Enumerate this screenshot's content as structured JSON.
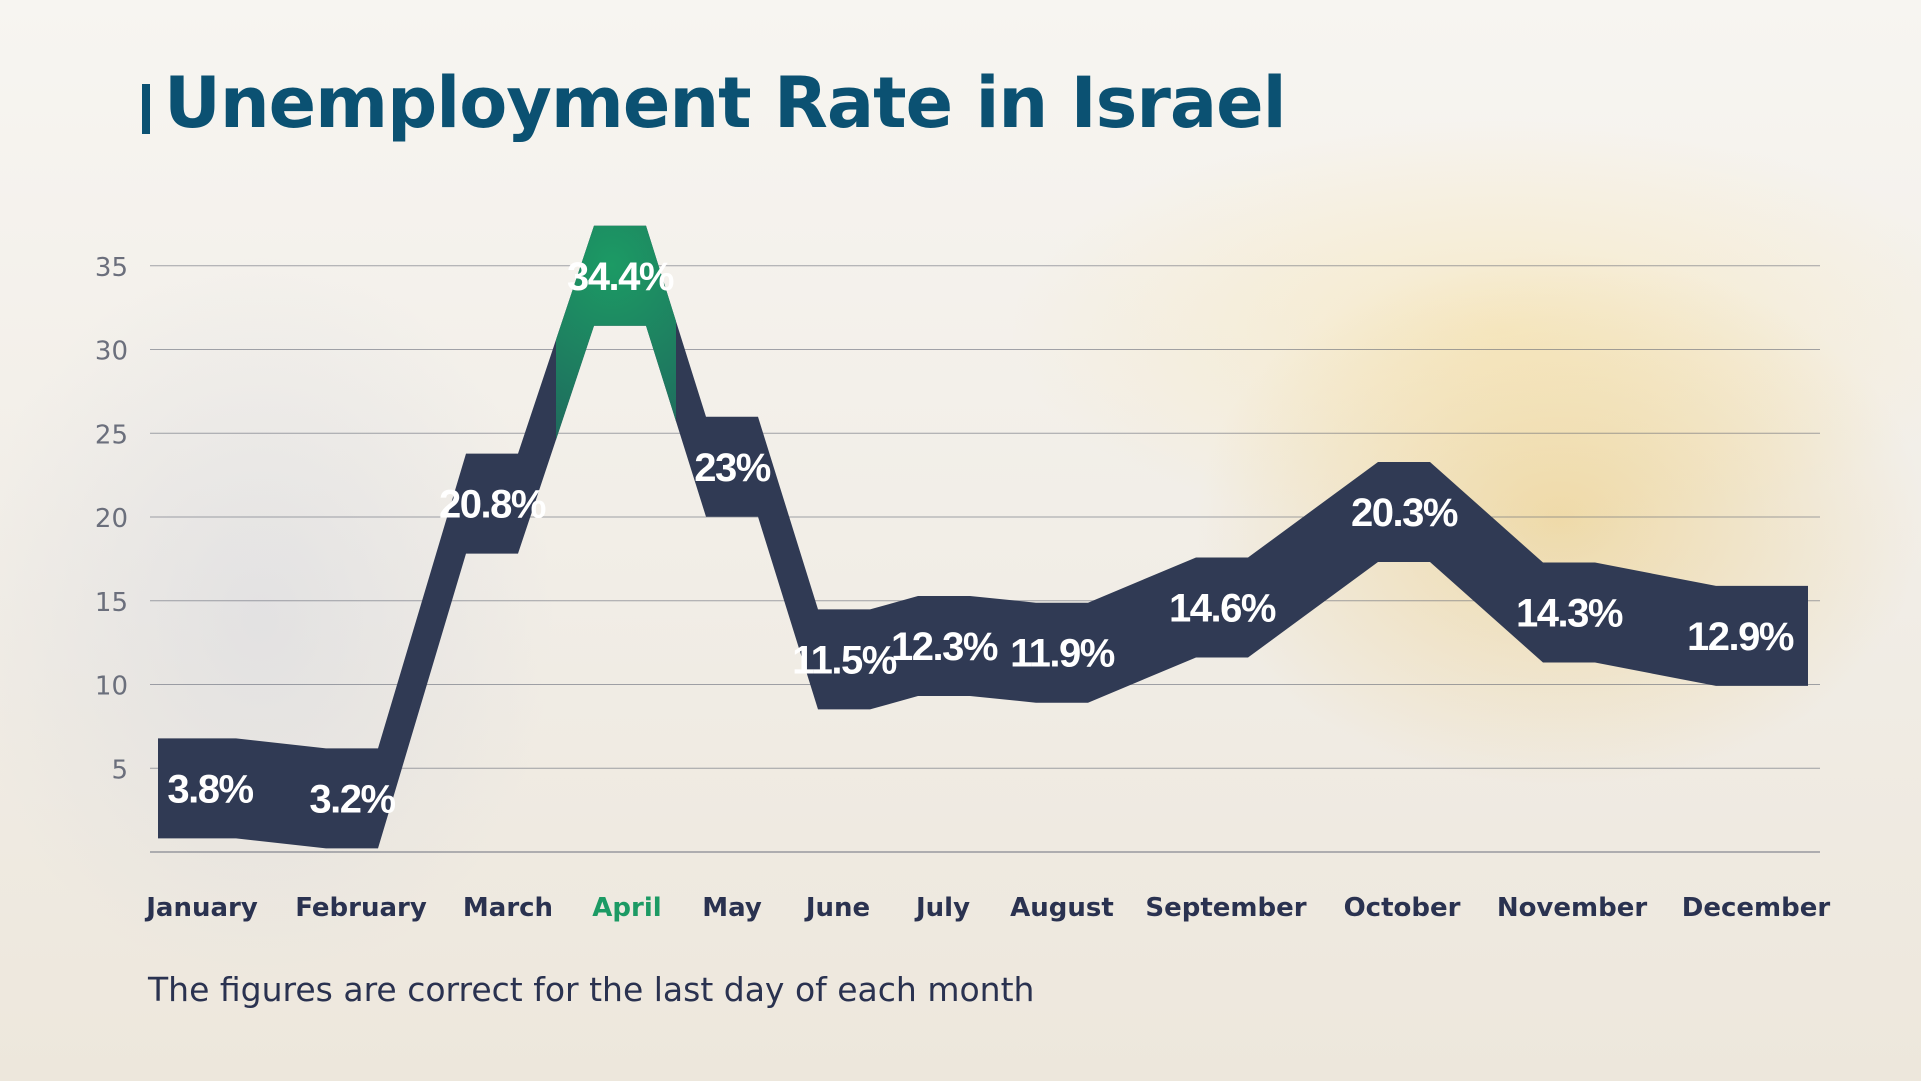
{
  "chart_data": {
    "type": "line",
    "title": "Unemployment Rate in Israel",
    "note": "The figures are correct for the last day of each month",
    "categories": [
      "January",
      "February",
      "March",
      "April",
      "May",
      "June",
      "July",
      "August",
      "September",
      "October",
      "November",
      "December"
    ],
    "values": [
      3.8,
      3.2,
      20.8,
      34.4,
      23,
      11.5,
      12.3,
      11.9,
      14.6,
      20.3,
      14.3,
      12.9
    ],
    "data_labels": [
      "3.8%",
      "3.2%",
      "20.8%",
      "34.4%",
      "23%",
      "11.5%",
      "12.3%",
      "11.9%",
      "14.6%",
      "20.3%",
      "14.3%",
      "12.9%"
    ],
    "highlight_index": 3,
    "y_ticks": [
      5,
      10,
      15,
      20,
      25,
      30,
      35
    ],
    "ylim": [
      0,
      35
    ],
    "grid": true,
    "colors": {
      "band": "#303a54",
      "highlight": "#1c9a64",
      "title": "#0b5172",
      "text": "#2a3250"
    }
  }
}
